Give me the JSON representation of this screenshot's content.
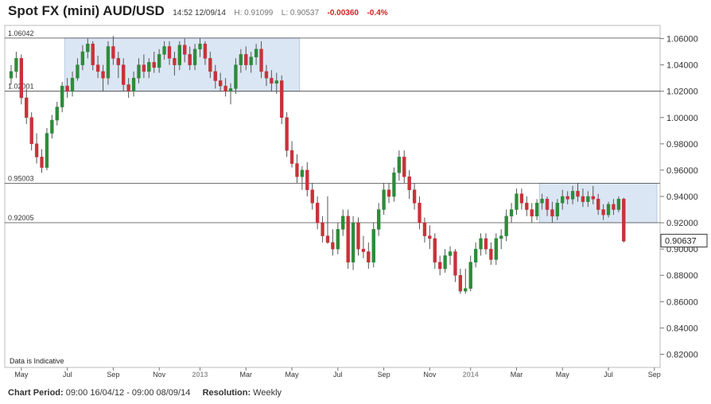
{
  "header": {
    "title": "Spot FX (mini) AUD/USD",
    "time": "14:52 12/09/14",
    "high": "H: 0.91099",
    "low": "L: 0.90537",
    "change": "-0.00360",
    "change_pct": "-0.4%"
  },
  "footer": {
    "period_label": "Chart Period:",
    "period_value": "09:00 16/04/12 - 09:00 08/09/14",
    "resolution_label": "Resolution:",
    "resolution_value": "Weekly"
  },
  "colors": {
    "up": "#2e8b3a",
    "down": "#c8323a",
    "wick": "#555555",
    "box_fill": "#dbe6f4",
    "box_stroke": "#b9cbe3",
    "level_line": "#444444"
  },
  "chart_data": {
    "type": "candlestick",
    "title": "Spot FX (mini) AUD/USD",
    "ylim": [
      0.81,
      1.07
    ],
    "y_ticks": [
      "1.06000",
      "1.04000",
      "1.02000",
      "1.00000",
      "0.98000",
      "0.96000",
      "0.94000",
      "0.92000",
      "0.90000",
      "0.88000",
      "0.86000",
      "0.84000",
      "0.82000"
    ],
    "x_ticks": [
      {
        "label": "May",
        "t": 2,
        "year": false
      },
      {
        "label": "Jul",
        "t": 11,
        "year": false
      },
      {
        "label": "Sep",
        "t": 20,
        "year": false
      },
      {
        "label": "Nov",
        "t": 29,
        "year": false
      },
      {
        "label": "2013",
        "t": 37,
        "year": true
      },
      {
        "label": "Mar",
        "t": 46,
        "year": false
      },
      {
        "label": "May",
        "t": 55,
        "year": false
      },
      {
        "label": "Jul",
        "t": 64,
        "year": false
      },
      {
        "label": "Sep",
        "t": 73,
        "year": false
      },
      {
        "label": "Nov",
        "t": 82,
        "year": false
      },
      {
        "label": "2014",
        "t": 90,
        "year": true
      },
      {
        "label": "Mar",
        "t": 99,
        "year": false
      },
      {
        "label": "May",
        "t": 108,
        "year": false
      },
      {
        "label": "Jul",
        "t": 117,
        "year": false
      },
      {
        "label": "Sep",
        "t": 126,
        "year": false
      }
    ],
    "levels": [
      {
        "label": "1.06042",
        "value": 1.06042
      },
      {
        "label": "1.02001",
        "value": 1.02001
      },
      {
        "label": "0.95003",
        "value": 0.95003
      },
      {
        "label": "0.92005",
        "value": 0.92005
      }
    ],
    "zones": [
      {
        "t_start": 10.5,
        "t_end": 56.5,
        "low": 1.02001,
        "high": 1.06042
      },
      {
        "t_start": 103.5,
        "t_end": 126.5,
        "low": 0.92005,
        "high": 0.95003
      }
    ],
    "last_price": "0.90637",
    "note": "Data is Indicative",
    "candles": [
      {
        "t": 0,
        "o": 1.03,
        "h": 1.04,
        "l": 1.025,
        "c": 1.035
      },
      {
        "t": 1,
        "o": 1.035,
        "h": 1.05,
        "l": 1.03,
        "c": 1.045
      },
      {
        "t": 2,
        "o": 1.045,
        "h": 1.048,
        "l": 1.01,
        "c": 1.015
      },
      {
        "t": 3,
        "o": 1.015,
        "h": 1.022,
        "l": 0.995,
        "c": 1.0
      },
      {
        "t": 4,
        "o": 1.0,
        "h": 1.004,
        "l": 0.975,
        "c": 0.98
      },
      {
        "t": 5,
        "o": 0.98,
        "h": 0.988,
        "l": 0.965,
        "c": 0.97
      },
      {
        "t": 6,
        "o": 0.97,
        "h": 0.976,
        "l": 0.958,
        "c": 0.962
      },
      {
        "t": 7,
        "o": 0.962,
        "h": 0.992,
        "l": 0.96,
        "c": 0.988
      },
      {
        "t": 8,
        "o": 0.988,
        "h": 1.002,
        "l": 0.984,
        "c": 0.998
      },
      {
        "t": 9,
        "o": 0.998,
        "h": 1.012,
        "l": 0.994,
        "c": 1.008
      },
      {
        "t": 10,
        "o": 1.008,
        "h": 1.027,
        "l": 1.004,
        "c": 1.024
      },
      {
        "t": 11,
        "o": 1.024,
        "h": 1.03,
        "l": 1.015,
        "c": 1.02
      },
      {
        "t": 12,
        "o": 1.02,
        "h": 1.035,
        "l": 1.016,
        "c": 1.03
      },
      {
        "t": 13,
        "o": 1.03,
        "h": 1.045,
        "l": 1.028,
        "c": 1.04
      },
      {
        "t": 14,
        "o": 1.04,
        "h": 1.055,
        "l": 1.036,
        "c": 1.05
      },
      {
        "t": 15,
        "o": 1.05,
        "h": 1.06,
        "l": 1.045,
        "c": 1.056
      },
      {
        "t": 16,
        "o": 1.056,
        "h": 1.058,
        "l": 1.036,
        "c": 1.04
      },
      {
        "t": 17,
        "o": 1.04,
        "h": 1.047,
        "l": 1.03,
        "c": 1.035
      },
      {
        "t": 18,
        "o": 1.035,
        "h": 1.04,
        "l": 1.02,
        "c": 1.03
      },
      {
        "t": 19,
        "o": 1.03,
        "h": 1.058,
        "l": 1.025,
        "c": 1.054
      },
      {
        "t": 20,
        "o": 1.054,
        "h": 1.062,
        "l": 1.04,
        "c": 1.045
      },
      {
        "t": 21,
        "o": 1.045,
        "h": 1.05,
        "l": 1.03,
        "c": 1.04
      },
      {
        "t": 22,
        "o": 1.04,
        "h": 1.045,
        "l": 1.02,
        "c": 1.025
      },
      {
        "t": 23,
        "o": 1.025,
        "h": 1.03,
        "l": 1.015,
        "c": 1.02
      },
      {
        "t": 24,
        "o": 1.02,
        "h": 1.035,
        "l": 1.016,
        "c": 1.03
      },
      {
        "t": 25,
        "o": 1.03,
        "h": 1.045,
        "l": 1.026,
        "c": 1.04
      },
      {
        "t": 26,
        "o": 1.04,
        "h": 1.048,
        "l": 1.03,
        "c": 1.035
      },
      {
        "t": 27,
        "o": 1.035,
        "h": 1.045,
        "l": 1.03,
        "c": 1.042
      },
      {
        "t": 28,
        "o": 1.042,
        "h": 1.05,
        "l": 1.034,
        "c": 1.038
      },
      {
        "t": 29,
        "o": 1.038,
        "h": 1.052,
        "l": 1.034,
        "c": 1.048
      },
      {
        "t": 30,
        "o": 1.048,
        "h": 1.058,
        "l": 1.044,
        "c": 1.054
      },
      {
        "t": 31,
        "o": 1.054,
        "h": 1.058,
        "l": 1.04,
        "c": 1.045
      },
      {
        "t": 32,
        "o": 1.045,
        "h": 1.05,
        "l": 1.032,
        "c": 1.04
      },
      {
        "t": 33,
        "o": 1.04,
        "h": 1.058,
        "l": 1.036,
        "c": 1.055
      },
      {
        "t": 34,
        "o": 1.055,
        "h": 1.06,
        "l": 1.042,
        "c": 1.048
      },
      {
        "t": 35,
        "o": 1.048,
        "h": 1.054,
        "l": 1.036,
        "c": 1.04
      },
      {
        "t": 36,
        "o": 1.04,
        "h": 1.056,
        "l": 1.036,
        "c": 1.052
      },
      {
        "t": 37,
        "o": 1.052,
        "h": 1.06,
        "l": 1.046,
        "c": 1.056
      },
      {
        "t": 38,
        "o": 1.056,
        "h": 1.058,
        "l": 1.04,
        "c": 1.045
      },
      {
        "t": 39,
        "o": 1.045,
        "h": 1.05,
        "l": 1.03,
        "c": 1.035
      },
      {
        "t": 40,
        "o": 1.035,
        "h": 1.04,
        "l": 1.022,
        "c": 1.028
      },
      {
        "t": 41,
        "o": 1.028,
        "h": 1.034,
        "l": 1.02,
        "c": 1.024
      },
      {
        "t": 42,
        "o": 1.024,
        "h": 1.03,
        "l": 1.016,
        "c": 1.02
      },
      {
        "t": 43,
        "o": 1.02,
        "h": 1.026,
        "l": 1.01,
        "c": 1.022
      },
      {
        "t": 44,
        "o": 1.022,
        "h": 1.045,
        "l": 1.018,
        "c": 1.04
      },
      {
        "t": 45,
        "o": 1.04,
        "h": 1.052,
        "l": 1.034,
        "c": 1.048
      },
      {
        "t": 46,
        "o": 1.048,
        "h": 1.054,
        "l": 1.036,
        "c": 1.04
      },
      {
        "t": 47,
        "o": 1.04,
        "h": 1.05,
        "l": 1.034,
        "c": 1.046
      },
      {
        "t": 48,
        "o": 1.046,
        "h": 1.056,
        "l": 1.04,
        "c": 1.052
      },
      {
        "t": 49,
        "o": 1.052,
        "h": 1.058,
        "l": 1.03,
        "c": 1.035
      },
      {
        "t": 50,
        "o": 1.035,
        "h": 1.04,
        "l": 1.024,
        "c": 1.03
      },
      {
        "t": 51,
        "o": 1.03,
        "h": 1.036,
        "l": 1.02,
        "c": 1.026
      },
      {
        "t": 52,
        "o": 1.026,
        "h": 1.034,
        "l": 1.018,
        "c": 1.028
      },
      {
        "t": 53,
        "o": 1.028,
        "h": 1.032,
        "l": 0.995,
        "c": 1.0
      },
      {
        "t": 54,
        "o": 1.0,
        "h": 1.004,
        "l": 0.97,
        "c": 0.975
      },
      {
        "t": 55,
        "o": 0.975,
        "h": 0.982,
        "l": 0.962,
        "c": 0.965
      },
      {
        "t": 56,
        "o": 0.965,
        "h": 0.972,
        "l": 0.95,
        "c": 0.955
      },
      {
        "t": 57,
        "o": 0.955,
        "h": 0.963,
        "l": 0.945,
        "c": 0.96
      },
      {
        "t": 58,
        "o": 0.96,
        "h": 0.966,
        "l": 0.94,
        "c": 0.945
      },
      {
        "t": 59,
        "o": 0.945,
        "h": 0.95,
        "l": 0.93,
        "c": 0.935
      },
      {
        "t": 60,
        "o": 0.935,
        "h": 0.94,
        "l": 0.915,
        "c": 0.92
      },
      {
        "t": 61,
        "o": 0.92,
        "h": 0.925,
        "l": 0.905,
        "c": 0.91
      },
      {
        "t": 62,
        "o": 0.91,
        "h": 0.94,
        "l": 0.904,
        "c": 0.905
      },
      {
        "t": 63,
        "o": 0.905,
        "h": 0.915,
        "l": 0.895,
        "c": 0.9
      },
      {
        "t": 64,
        "o": 0.9,
        "h": 0.92,
        "l": 0.896,
        "c": 0.915
      },
      {
        "t": 65,
        "o": 0.915,
        "h": 0.93,
        "l": 0.91,
        "c": 0.925
      },
      {
        "t": 66,
        "o": 0.925,
        "h": 0.93,
        "l": 0.885,
        "c": 0.89
      },
      {
        "t": 67,
        "o": 0.89,
        "h": 0.925,
        "l": 0.884,
        "c": 0.92
      },
      {
        "t": 68,
        "o": 0.92,
        "h": 0.924,
        "l": 0.895,
        "c": 0.9
      },
      {
        "t": 69,
        "o": 0.9,
        "h": 0.91,
        "l": 0.893,
        "c": 0.898
      },
      {
        "t": 70,
        "o": 0.898,
        "h": 0.905,
        "l": 0.885,
        "c": 0.89
      },
      {
        "t": 71,
        "o": 0.89,
        "h": 0.92,
        "l": 0.886,
        "c": 0.915
      },
      {
        "t": 72,
        "o": 0.915,
        "h": 0.935,
        "l": 0.91,
        "c": 0.93
      },
      {
        "t": 73,
        "o": 0.93,
        "h": 0.95,
        "l": 0.926,
        "c": 0.945
      },
      {
        "t": 74,
        "o": 0.945,
        "h": 0.95,
        "l": 0.935,
        "c": 0.94
      },
      {
        "t": 75,
        "o": 0.94,
        "h": 0.962,
        "l": 0.936,
        "c": 0.958
      },
      {
        "t": 76,
        "o": 0.958,
        "h": 0.975,
        "l": 0.952,
        "c": 0.97
      },
      {
        "t": 77,
        "o": 0.97,
        "h": 0.975,
        "l": 0.95,
        "c": 0.955
      },
      {
        "t": 78,
        "o": 0.955,
        "h": 0.96,
        "l": 0.938,
        "c": 0.945
      },
      {
        "t": 79,
        "o": 0.945,
        "h": 0.95,
        "l": 0.93,
        "c": 0.935
      },
      {
        "t": 80,
        "o": 0.935,
        "h": 0.94,
        "l": 0.915,
        "c": 0.92
      },
      {
        "t": 81,
        "o": 0.92,
        "h": 0.924,
        "l": 0.905,
        "c": 0.91
      },
      {
        "t": 82,
        "o": 0.91,
        "h": 0.918,
        "l": 0.9,
        "c": 0.908
      },
      {
        "t": 83,
        "o": 0.908,
        "h": 0.912,
        "l": 0.885,
        "c": 0.89
      },
      {
        "t": 84,
        "o": 0.89,
        "h": 0.895,
        "l": 0.88,
        "c": 0.885
      },
      {
        "t": 85,
        "o": 0.885,
        "h": 0.9,
        "l": 0.882,
        "c": 0.895
      },
      {
        "t": 86,
        "o": 0.895,
        "h": 0.902,
        "l": 0.888,
        "c": 0.898
      },
      {
        "t": 87,
        "o": 0.898,
        "h": 0.9,
        "l": 0.875,
        "c": 0.88
      },
      {
        "t": 88,
        "o": 0.88,
        "h": 0.885,
        "l": 0.866,
        "c": 0.868
      },
      {
        "t": 89,
        "o": 0.868,
        "h": 0.885,
        "l": 0.866,
        "c": 0.87
      },
      {
        "t": 90,
        "o": 0.87,
        "h": 0.895,
        "l": 0.868,
        "c": 0.89
      },
      {
        "t": 91,
        "o": 0.89,
        "h": 0.905,
        "l": 0.886,
        "c": 0.9
      },
      {
        "t": 92,
        "o": 0.9,
        "h": 0.912,
        "l": 0.895,
        "c": 0.908
      },
      {
        "t": 93,
        "o": 0.908,
        "h": 0.912,
        "l": 0.896,
        "c": 0.9
      },
      {
        "t": 94,
        "o": 0.9,
        "h": 0.905,
        "l": 0.888,
        "c": 0.892
      },
      {
        "t": 95,
        "o": 0.892,
        "h": 0.912,
        "l": 0.888,
        "c": 0.908
      },
      {
        "t": 96,
        "o": 0.908,
        "h": 0.915,
        "l": 0.9,
        "c": 0.91
      },
      {
        "t": 97,
        "o": 0.91,
        "h": 0.93,
        "l": 0.906,
        "c": 0.925
      },
      {
        "t": 98,
        "o": 0.925,
        "h": 0.935,
        "l": 0.92,
        "c": 0.93
      },
      {
        "t": 99,
        "o": 0.93,
        "h": 0.946,
        "l": 0.926,
        "c": 0.942
      },
      {
        "t": 100,
        "o": 0.942,
        "h": 0.946,
        "l": 0.93,
        "c": 0.935
      },
      {
        "t": 101,
        "o": 0.935,
        "h": 0.94,
        "l": 0.925,
        "c": 0.93
      },
      {
        "t": 102,
        "o": 0.93,
        "h": 0.935,
        "l": 0.92,
        "c": 0.925
      },
      {
        "t": 103,
        "o": 0.925,
        "h": 0.938,
        "l": 0.922,
        "c": 0.935
      },
      {
        "t": 104,
        "o": 0.935,
        "h": 0.942,
        "l": 0.93,
        "c": 0.938
      },
      {
        "t": 105,
        "o": 0.938,
        "h": 0.94,
        "l": 0.925,
        "c": 0.93
      },
      {
        "t": 106,
        "o": 0.93,
        "h": 0.936,
        "l": 0.92,
        "c": 0.925
      },
      {
        "t": 107,
        "o": 0.925,
        "h": 0.938,
        "l": 0.922,
        "c": 0.935
      },
      {
        "t": 108,
        "o": 0.935,
        "h": 0.945,
        "l": 0.93,
        "c": 0.94
      },
      {
        "t": 109,
        "o": 0.94,
        "h": 0.944,
        "l": 0.934,
        "c": 0.938
      },
      {
        "t": 110,
        "o": 0.938,
        "h": 0.948,
        "l": 0.934,
        "c": 0.944
      },
      {
        "t": 111,
        "o": 0.944,
        "h": 0.95,
        "l": 0.936,
        "c": 0.94
      },
      {
        "t": 112,
        "o": 0.94,
        "h": 0.946,
        "l": 0.932,
        "c": 0.936
      },
      {
        "t": 113,
        "o": 0.936,
        "h": 0.944,
        "l": 0.932,
        "c": 0.94
      },
      {
        "t": 114,
        "o": 0.94,
        "h": 0.948,
        "l": 0.934,
        "c": 0.938
      },
      {
        "t": 115,
        "o": 0.938,
        "h": 0.942,
        "l": 0.926,
        "c": 0.93
      },
      {
        "t": 116,
        "o": 0.93,
        "h": 0.934,
        "l": 0.922,
        "c": 0.926
      },
      {
        "t": 117,
        "o": 0.926,
        "h": 0.936,
        "l": 0.924,
        "c": 0.934
      },
      {
        "t": 118,
        "o": 0.934,
        "h": 0.938,
        "l": 0.926,
        "c": 0.93
      },
      {
        "t": 119,
        "o": 0.93,
        "h": 0.94,
        "l": 0.928,
        "c": 0.938
      },
      {
        "t": 120,
        "o": 0.938,
        "h": 0.939,
        "l": 0.905,
        "c": 0.906
      }
    ]
  }
}
